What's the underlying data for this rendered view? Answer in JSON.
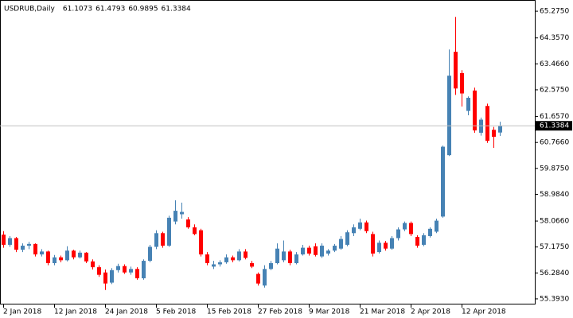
{
  "chart_data": {
    "type": "candlestick",
    "title": "USDRUB,Daily",
    "categories": [
      "2 Jan 2018",
      null,
      null,
      null,
      null,
      null,
      null,
      null,
      "12 Jan 2018",
      null,
      null,
      null,
      null,
      null,
      null,
      null,
      "24 Jan 2018",
      null,
      null,
      null,
      null,
      null,
      null,
      null,
      "5 Feb 2018",
      null,
      null,
      null,
      null,
      null,
      null,
      null,
      "15 Feb 2018",
      null,
      null,
      null,
      null,
      null,
      null,
      null,
      "27 Feb 2018",
      null,
      null,
      null,
      null,
      null,
      null,
      null,
      "9 Mar 2018",
      null,
      null,
      null,
      null,
      null,
      null,
      null,
      "21 Mar 2018",
      null,
      null,
      null,
      null,
      null,
      null,
      null,
      "2 Apr 2018",
      null,
      null,
      null,
      null,
      null,
      null,
      null,
      "12 Apr 2018",
      null,
      null,
      null,
      null,
      null,
      null
    ],
    "open": [
      57.6,
      57.25,
      57.48,
      57.08,
      57.22,
      57.28,
      56.92,
      57.02,
      56.62,
      56.82,
      56.72,
      57.05,
      56.82,
      56.98,
      56.68,
      56.48,
      56.3,
      55.95,
      56.38,
      56.52,
      56.3,
      56.42,
      56.1,
      56.7,
      57.18,
      57.65,
      57.22,
      58.05,
      58.3,
      58.12,
      57.85,
      57.75,
      56.92,
      56.5,
      56.58,
      56.65,
      56.82,
      56.72,
      57.02,
      56.62,
      56.25,
      55.85,
      56.42,
      56.62,
      56.72,
      57.02,
      56.62,
      56.92,
      57.15,
      57.2,
      56.85,
      56.95,
      57.05,
      57.12,
      57.25,
      57.65,
      57.8,
      58.02,
      57.62,
      57.0,
      57.32,
      57.12,
      57.48,
      57.78,
      58.0,
      57.52,
      57.25,
      57.55,
      57.7,
      58.22,
      60.33,
      63.88,
      63.15,
      61.85,
      62.55,
      61.1,
      62.02,
      61.2,
      61.1073
    ],
    "high": [
      57.72,
      57.55,
      57.52,
      57.3,
      57.35,
      57.3,
      57.1,
      57.05,
      56.9,
      56.88,
      57.2,
      57.08,
      57.05,
      57.0,
      56.75,
      56.55,
      56.4,
      56.45,
      56.6,
      56.58,
      56.5,
      56.48,
      56.75,
      57.25,
      57.75,
      57.7,
      58.25,
      58.78,
      58.7,
      58.2,
      57.95,
      57.8,
      57.0,
      56.7,
      56.72,
      56.92,
      56.88,
      57.1,
      57.1,
      56.7,
      56.3,
      56.55,
      56.7,
      57.3,
      57.4,
      57.08,
      57.0,
      57.25,
      57.22,
      57.3,
      57.3,
      57.1,
      57.28,
      57.55,
      57.75,
      57.95,
      58.15,
      58.08,
      57.7,
      57.4,
      57.38,
      57.55,
      57.85,
      58.05,
      58.05,
      57.58,
      57.65,
      57.85,
      58.15,
      60.66,
      63.96,
      65.08,
      63.25,
      62.35,
      62.65,
      61.62,
      62.1,
      61.3,
      61.4793
    ],
    "low": [
      57.15,
      57.18,
      57.0,
      57.0,
      57.1,
      56.85,
      56.85,
      56.55,
      56.55,
      56.65,
      56.68,
      56.75,
      56.78,
      56.62,
      56.4,
      56.15,
      55.7,
      55.9,
      56.3,
      56.25,
      56.22,
      56.05,
      56.05,
      56.65,
      57.1,
      57.15,
      57.18,
      57.95,
      58.15,
      57.8,
      57.58,
      56.85,
      56.55,
      56.42,
      56.5,
      56.6,
      56.65,
      56.68,
      56.75,
      56.45,
      55.85,
      55.78,
      56.38,
      56.58,
      56.65,
      56.55,
      56.58,
      56.88,
      56.88,
      56.85,
      56.8,
      56.88,
      57.0,
      57.08,
      57.2,
      57.55,
      57.75,
      57.65,
      56.85,
      56.95,
      57.05,
      57.08,
      57.4,
      57.72,
      57.55,
      57.15,
      57.2,
      57.5,
      57.65,
      58.18,
      60.3,
      62.4,
      62.0,
      61.7,
      61.1,
      61.0,
      60.75,
      60.58,
      60.9895
    ],
    "close": [
      57.25,
      57.48,
      57.08,
      57.22,
      57.28,
      56.92,
      57.02,
      56.62,
      56.82,
      56.72,
      57.05,
      56.82,
      56.98,
      56.68,
      56.48,
      56.22,
      55.92,
      56.38,
      56.52,
      56.3,
      56.42,
      56.1,
      56.7,
      57.18,
      57.65,
      57.22,
      58.18,
      58.42,
      58.38,
      57.85,
      57.62,
      56.92,
      56.62,
      56.58,
      56.65,
      56.82,
      56.72,
      57.02,
      56.8,
      56.5,
      55.92,
      56.42,
      56.62,
      57.12,
      57.02,
      56.62,
      56.92,
      57.15,
      56.95,
      56.9,
      57.22,
      57.05,
      57.22,
      57.45,
      57.68,
      57.85,
      58.02,
      57.72,
      56.95,
      57.32,
      57.12,
      57.48,
      57.78,
      58.0,
      57.62,
      57.22,
      57.58,
      57.8,
      58.08,
      60.62,
      63.06,
      62.62,
      62.45,
      62.3,
      61.18,
      61.55,
      60.82,
      60.96,
      61.3384
    ],
    "up_color": "#4682b4",
    "down_color": "#ff0000",
    "ylim": [
      55.2,
      65.66
    ],
    "yticks": [
      {
        "value": 55.393,
        "label": "55.3930"
      },
      {
        "value": 56.284,
        "label": "56.2840"
      },
      {
        "value": 57.175,
        "label": "57.1750"
      },
      {
        "value": 58.066,
        "label": "58.0660"
      },
      {
        "value": 58.984,
        "label": "58.9840"
      },
      {
        "value": 59.875,
        "label": "59.8750"
      },
      {
        "value": 60.766,
        "label": "60.7660"
      },
      {
        "value": 61.657,
        "label": "61.6570"
      },
      {
        "value": 62.575,
        "label": "62.5750"
      },
      {
        "value": 63.466,
        "label": "63.4660"
      },
      {
        "value": 64.357,
        "label": "64.3570"
      },
      {
        "value": 65.275,
        "label": "65.2750"
      }
    ],
    "grid": false
  }
}
